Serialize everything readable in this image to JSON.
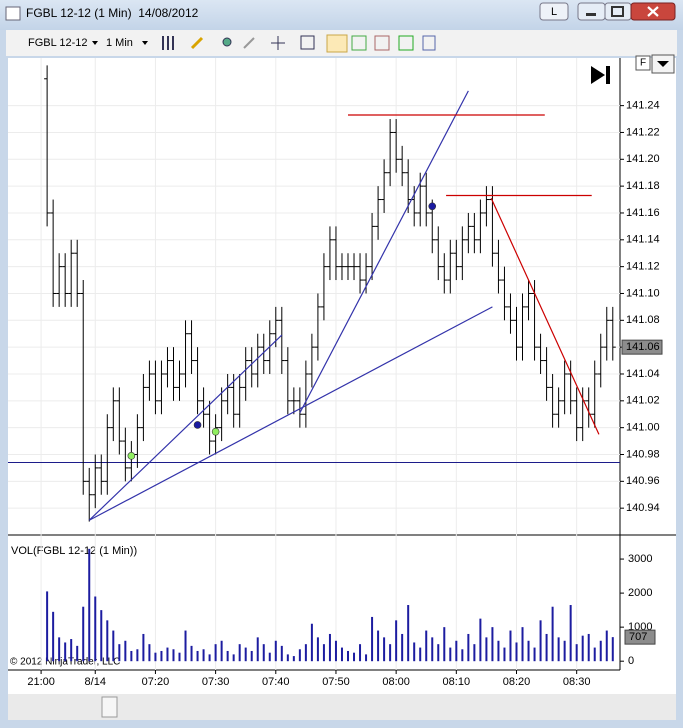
{
  "window": {
    "title": "FGBL 12-12 (1 Min)  14/08/2012",
    "button": "L"
  },
  "toolbar": {
    "instrument": "FGBL 12-12",
    "interval": "1 Min"
  },
  "chart_controls": {
    "f_button": "F"
  },
  "copyright": "© 2012 NinjaTrader, LLC",
  "chart_data": [
    {
      "type": "ohlc",
      "color": "#000000",
      "grid": true,
      "x": [
        -18,
        -17,
        -16,
        -15,
        -14,
        -13,
        -12,
        -11,
        -10,
        -9,
        -8,
        -7,
        -6,
        -5,
        -4,
        -3,
        -2,
        -1,
        0,
        1,
        2,
        3,
        4,
        5,
        6,
        7,
        8,
        9,
        10,
        11,
        12,
        13,
        14,
        15,
        16,
        17,
        18,
        19,
        20,
        21,
        22,
        23,
        24,
        25,
        26,
        27,
        28,
        29,
        30,
        31,
        32,
        33,
        34,
        35,
        36,
        37,
        38,
        39,
        40,
        41,
        42,
        43,
        44,
        45,
        46,
        47,
        48,
        49,
        50,
        51,
        52,
        53,
        54,
        55,
        56,
        57,
        58,
        59,
        60,
        61,
        62,
        63,
        64,
        65,
        66,
        67,
        68,
        69,
        70,
        71,
        72,
        73,
        74,
        75,
        76
      ],
      "open": [
        141.26,
        141.16,
        141.1,
        141.12,
        141.1,
        141.13,
        141.1,
        140.96,
        140.95,
        140.97,
        140.96,
        141.0,
        141.02,
        140.99,
        140.97,
        140.98,
        141.0,
        141.03,
        141.04,
        141.02,
        141.04,
        141.05,
        141.03,
        141.04,
        141.07,
        141.05,
        141.02,
        141.01,
        140.99,
        141.0,
        141.02,
        141.03,
        141.01,
        141.03,
        141.05,
        141.04,
        141.06,
        141.05,
        141.07,
        141.08,
        141.05,
        141.02,
        141.02,
        141.01,
        141.04,
        141.06,
        141.09,
        141.12,
        141.14,
        141.12,
        141.12,
        141.12,
        141.12,
        141.11,
        141.12,
        141.15,
        141.17,
        141.19,
        141.22,
        141.2,
        141.19,
        141.17,
        141.16,
        141.18,
        141.16,
        141.14,
        141.12,
        141.11,
        141.13,
        141.12,
        141.14,
        141.15,
        141.14,
        141.16,
        141.17,
        141.13,
        141.11,
        141.09,
        141.08,
        141.06,
        141.09,
        141.1,
        141.06,
        141.05,
        141.03,
        141.01,
        141.02,
        141.04,
        141.02,
        141.0,
        141.02,
        141.01,
        141.04,
        141.06,
        141.08
      ],
      "high": [
        141.27,
        141.17,
        141.13,
        141.13,
        141.14,
        141.14,
        141.11,
        140.97,
        140.98,
        140.98,
        141.01,
        141.03,
        141.03,
        141.0,
        140.99,
        141.01,
        141.04,
        141.05,
        141.05,
        141.05,
        141.06,
        141.06,
        141.05,
        141.08,
        141.08,
        141.06,
        141.03,
        141.02,
        141.01,
        141.03,
        141.04,
        141.04,
        141.04,
        141.06,
        141.06,
        141.07,
        141.07,
        141.08,
        141.09,
        141.09,
        141.06,
        141.03,
        141.03,
        141.05,
        141.07,
        141.1,
        141.13,
        141.15,
        141.15,
        141.13,
        141.13,
        141.13,
        141.13,
        141.13,
        141.16,
        141.18,
        141.2,
        141.23,
        141.23,
        141.21,
        141.2,
        141.18,
        141.19,
        141.19,
        141.17,
        141.15,
        141.13,
        141.14,
        141.14,
        141.15,
        141.16,
        141.16,
        141.17,
        141.18,
        141.18,
        141.14,
        141.12,
        141.1,
        141.09,
        141.1,
        141.11,
        141.11,
        141.07,
        141.06,
        141.04,
        141.03,
        141.05,
        141.05,
        141.03,
        141.03,
        141.03,
        141.05,
        141.07,
        141.09,
        141.09
      ],
      "low": [
        141.15,
        141.09,
        141.09,
        141.09,
        141.09,
        141.09,
        140.95,
        140.93,
        140.94,
        140.95,
        140.95,
        140.99,
        140.98,
        140.96,
        140.96,
        140.97,
        140.99,
        141.02,
        141.01,
        141.01,
        141.03,
        141.02,
        141.02,
        141.03,
        141.04,
        141.01,
        141.0,
        140.98,
        140.98,
        140.99,
        141.01,
        141.0,
        141.0,
        141.02,
        141.03,
        141.03,
        141.04,
        141.04,
        141.06,
        141.04,
        141.01,
        141.01,
        141.0,
        141.0,
        141.03,
        141.05,
        141.08,
        141.11,
        141.11,
        141.11,
        141.11,
        141.11,
        141.1,
        141.1,
        141.11,
        141.14,
        141.16,
        141.18,
        141.19,
        141.18,
        141.16,
        141.15,
        141.15,
        141.15,
        141.13,
        141.11,
        141.1,
        141.1,
        141.11,
        141.11,
        141.13,
        141.13,
        141.13,
        141.15,
        141.12,
        141.1,
        141.08,
        141.07,
        141.05,
        141.05,
        141.08,
        141.05,
        141.04,
        141.02,
        141.0,
        141.0,
        141.01,
        141.01,
        140.99,
        140.99,
        141.0,
        141.0,
        141.03,
        141.05,
        141.05
      ],
      "close": [
        141.16,
        141.1,
        141.12,
        141.1,
        141.13,
        141.1,
        140.96,
        140.95,
        140.97,
        140.96,
        141.0,
        141.02,
        140.99,
        140.97,
        140.98,
        141.0,
        141.03,
        141.04,
        141.02,
        141.04,
        141.05,
        141.03,
        141.04,
        141.07,
        141.05,
        141.02,
        141.01,
        140.99,
        141.0,
        141.02,
        141.03,
        141.01,
        141.03,
        141.05,
        141.04,
        141.06,
        141.05,
        141.07,
        141.08,
        141.05,
        141.02,
        141.02,
        141.01,
        141.04,
        141.06,
        141.09,
        141.12,
        141.14,
        141.12,
        141.12,
        141.12,
        141.12,
        141.11,
        141.12,
        141.15,
        141.17,
        141.19,
        141.22,
        141.2,
        141.19,
        141.17,
        141.16,
        141.18,
        141.16,
        141.14,
        141.12,
        141.11,
        141.13,
        141.12,
        141.14,
        141.15,
        141.14,
        141.16,
        141.17,
        141.13,
        141.11,
        141.09,
        141.08,
        141.06,
        141.09,
        141.1,
        141.06,
        141.05,
        141.03,
        141.01,
        141.02,
        141.04,
        141.02,
        141.0,
        141.02,
        141.01,
        141.04,
        141.06,
        141.08,
        141.06
      ],
      "xlim": [
        -24.5,
        77.2
      ],
      "ylim": [
        140.92,
        141.274
      ],
      "xticks": [
        {
          "value": -19,
          "label": "21:00"
        },
        {
          "value": -10,
          "label": "8/14"
        },
        {
          "value": 0,
          "label": "07:20"
        },
        {
          "value": 10,
          "label": "07:30"
        },
        {
          "value": 20,
          "label": "07:40"
        },
        {
          "value": 30,
          "label": "07:50"
        },
        {
          "value": 40,
          "label": "08:00"
        },
        {
          "value": 50,
          "label": "08:10"
        },
        {
          "value": 60,
          "label": "08:20"
        },
        {
          "value": 70,
          "label": "08:30"
        }
      ],
      "yticks": [
        140.94,
        140.96,
        140.98,
        {
          "value": 141.0,
          "label": "141.00"
        },
        141.02,
        141.04,
        141.06,
        141.08,
        {
          "value": 141.1,
          "label": "141.10"
        },
        141.12,
        141.14,
        141.16,
        141.18,
        {
          "value": 141.2,
          "label": "141.20"
        },
        141.22,
        141.24
      ],
      "last_price": 141.06,
      "hlines": [
        {
          "value": 140.974,
          "color": "#1c1c8a"
        }
      ],
      "segments": [
        {
          "x1": -11,
          "y1": 140.931,
          "x2": 21,
          "y2": 141.069,
          "color": "#3333aa"
        },
        {
          "x1": -11,
          "y1": 140.931,
          "x2": 56,
          "y2": 141.09,
          "color": "#3333aa"
        },
        {
          "x1": 24,
          "y1": 141.011,
          "x2": 52,
          "y2": 141.251,
          "color": "#3333aa"
        },
        {
          "x1": 55.8,
          "y1": 141.171,
          "x2": 73.7,
          "y2": 140.995,
          "color": "#cc0000"
        },
        {
          "x1": 32,
          "y1": 141.233,
          "x2": 64.7,
          "y2": 141.233,
          "color": "#cc0000"
        },
        {
          "x1": 48.3,
          "y1": 141.173,
          "x2": 72.5,
          "y2": 141.173,
          "color": "#cc0000"
        }
      ],
      "markers": [
        {
          "x": 7,
          "y": 141.002,
          "color": "#1a1aa0"
        },
        {
          "x": 46,
          "y": 141.165,
          "color": "#1a1aa0"
        },
        {
          "x": -4,
          "y": 140.979,
          "color": "#90ee60"
        },
        {
          "x": 10,
          "y": 140.997,
          "color": "#90ee60"
        }
      ]
    },
    {
      "type": "bar",
      "title": "VOL(FGBL 12-12 (1 Min))",
      "color": "#1c1ca0",
      "values": [
        2050,
        1450,
        700,
        550,
        650,
        450,
        1600,
        3300,
        1900,
        1500,
        1200,
        900,
        500,
        600,
        300,
        350,
        800,
        500,
        250,
        300,
        400,
        350,
        250,
        900,
        450,
        300,
        350,
        200,
        500,
        600,
        300,
        200,
        500,
        400,
        300,
        700,
        500,
        250,
        600,
        450,
        200,
        150,
        350,
        500,
        1100,
        700,
        500,
        800,
        600,
        400,
        300,
        250,
        500,
        200,
        1300,
        900,
        700,
        500,
        1200,
        800,
        1650,
        550,
        400,
        900,
        700,
        500,
        1000,
        400,
        600,
        350,
        800,
        500,
        1250,
        700,
        1000,
        600,
        400,
        900,
        550,
        1000,
        600,
        400,
        1200,
        800,
        1600,
        700,
        600,
        1650,
        500,
        750,
        800,
        400,
        600,
        900,
        707
      ],
      "ylim": [
        -200,
        3560
      ],
      "yticks": [
        0,
        1000,
        2000,
        3000
      ],
      "last_value": 707
    }
  ]
}
